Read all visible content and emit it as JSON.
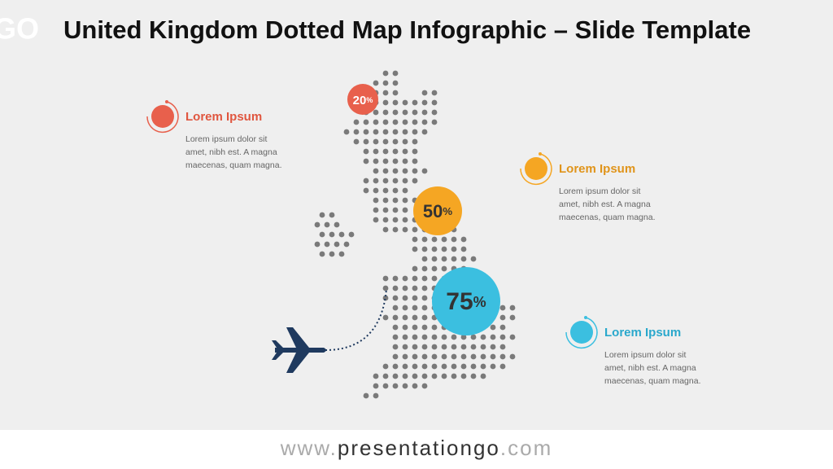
{
  "logo": "GO",
  "header": {
    "title": "United Kingdom Dotted Map Infographic – Slide Template"
  },
  "bubbles": [
    {
      "number": "20",
      "unit": "%"
    },
    {
      "number": "50",
      "unit": "%"
    },
    {
      "number": "75",
      "unit": "%"
    }
  ],
  "items": [
    {
      "title": "Lorem Ipsum",
      "lines": [
        "Lorem ipsum dolor sit",
        "amet, nibh est. A magna",
        "maecenas, quam magna."
      ]
    },
    {
      "title": "Lorem Ipsum",
      "lines": [
        "Lorem ipsum dolor sit",
        "amet, nibh est. A magna",
        "maecenas, quam magna."
      ]
    },
    {
      "title": "Lorem Ipsum",
      "lines": [
        "Lorem ipsum dolor sit",
        "amet, nibh est. A magna",
        "maecenas, quam magna."
      ]
    }
  ],
  "footer": {
    "prefix": "www.",
    "name": "presentationgo",
    "suffix": ".com"
  }
}
